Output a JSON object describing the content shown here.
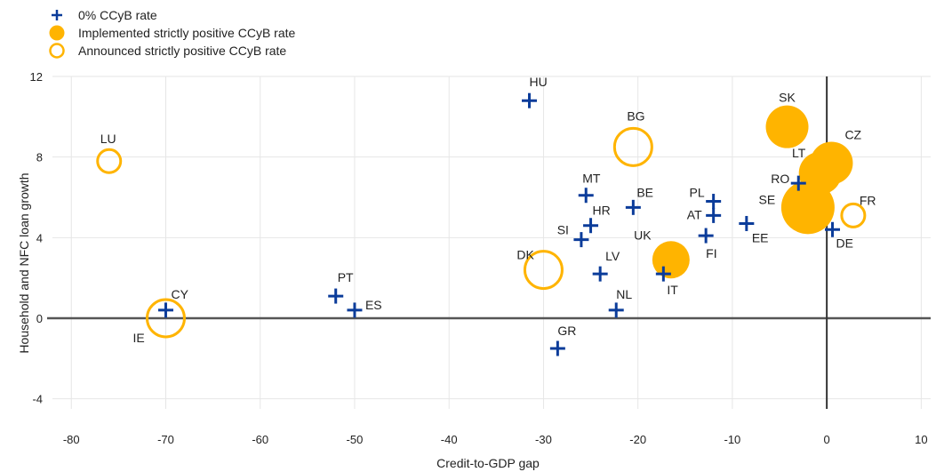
{
  "chart_data": {
    "type": "scatter",
    "title": "",
    "xlabel": "Credit-to-GDP gap",
    "ylabel": "Household and NFC loan growth",
    "xlim": [
      -82,
      11
    ],
    "ylim": [
      -4.5,
      12
    ],
    "xticks": [
      -80,
      -70,
      -60,
      -50,
      -40,
      -30,
      -20,
      -10,
      0,
      10
    ],
    "yticks": [
      -4,
      0,
      4,
      8,
      12
    ],
    "grid": true,
    "legend_position": "top-left",
    "colors": {
      "zero_rate": "#0b3c9a",
      "positive_rate": "#ffb400",
      "axis_line": "#555555",
      "grid": "#e6e6e6"
    },
    "legend": [
      {
        "key": "zero",
        "label": "0% CCyB rate"
      },
      {
        "key": "implemented",
        "label": "Implemented strictly positive CCyB rate"
      },
      {
        "key": "announced",
        "label": "Announced strictly positive CCyB rate"
      }
    ],
    "series": [
      {
        "key": "zero",
        "name": "0% CCyB rate",
        "marker": "plus",
        "points": [
          {
            "label": "HU",
            "x": -31.5,
            "y": 10.8
          },
          {
            "label": "MT",
            "x": -25.5,
            "y": 6.1
          },
          {
            "label": "BE",
            "x": -20.5,
            "y": 5.5
          },
          {
            "label": "HR",
            "x": -25.0,
            "y": 4.6
          },
          {
            "label": "SI",
            "x": -26.0,
            "y": 3.9
          },
          {
            "label": "LV",
            "x": -24.0,
            "y": 2.2
          },
          {
            "label": "NL",
            "x": -22.3,
            "y": 0.4
          },
          {
            "label": "GR",
            "x": -28.5,
            "y": -1.5
          },
          {
            "label": "IT",
            "x": -17.3,
            "y": 2.2
          },
          {
            "label": "PL",
            "x": -12.0,
            "y": 5.8
          },
          {
            "label": "AT",
            "x": -12.0,
            "y": 5.1
          },
          {
            "label": "FI",
            "x": -12.8,
            "y": 4.1
          },
          {
            "label": "EE",
            "x": -8.5,
            "y": 4.7
          },
          {
            "label": "RO",
            "x": -3.0,
            "y": 6.7
          },
          {
            "label": "DE",
            "x": 0.6,
            "y": 4.4
          },
          {
            "label": "PT",
            "x": -52.0,
            "y": 1.1
          },
          {
            "label": "ES",
            "x": -50.0,
            "y": 0.4
          },
          {
            "label": "CY",
            "x": -70.0,
            "y": 0.4
          }
        ]
      },
      {
        "key": "implemented",
        "name": "Implemented strictly positive CCyB rate",
        "marker": "filled-circle",
        "points": [
          {
            "label": "SK",
            "x": -4.2,
            "y": 9.5,
            "size": "large"
          },
          {
            "label": "CZ",
            "x": 0.5,
            "y": 7.7,
            "size": "large"
          },
          {
            "label": "LT",
            "x": -0.7,
            "y": 7.2,
            "size": "large"
          },
          {
            "label": "SE",
            "x": -2.0,
            "y": 5.5,
            "size": "xlarge"
          },
          {
            "label": "UK",
            "x": -16.5,
            "y": 2.9,
            "size": "medium"
          }
        ]
      },
      {
        "key": "announced",
        "name": "Announced strictly positive CCyB rate",
        "marker": "open-circle",
        "points": [
          {
            "label": "LU",
            "x": -76.0,
            "y": 7.8,
            "size": "small"
          },
          {
            "label": "BG",
            "x": -20.5,
            "y": 8.5,
            "size": "medium"
          },
          {
            "label": "DK",
            "x": -30.0,
            "y": 2.4,
            "size": "medium"
          },
          {
            "label": "IE",
            "x": -70.0,
            "y": 0.0,
            "size": "medium"
          },
          {
            "label": "FR",
            "x": 2.8,
            "y": 5.1,
            "size": "small"
          }
        ]
      }
    ]
  }
}
